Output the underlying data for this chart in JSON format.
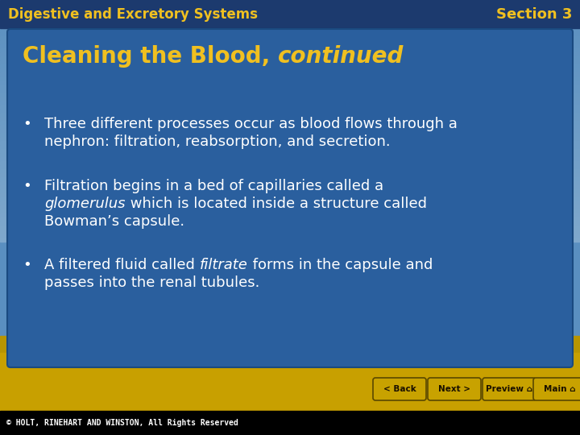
{
  "header_left": "Digestive and Excretory Systems",
  "header_right": "Section 3",
  "title_normal": "Cleaning the Blood, ",
  "title_italic": "continued",
  "bullet1_line1": "Three different processes occur as blood flows through a",
  "bullet1_line2": "nephron: filtration, reabsorption, and secretion.",
  "bullet2_line1_pre": "Filtration begins in a bed of capillaries called a",
  "bullet2_line2_italic": "glomerulus",
  "bullet2_line2_post": " which is located inside a structure called",
  "bullet2_line3": "Bowman’s capsule.",
  "bullet3_line1_pre": "A filtered fluid called ",
  "bullet3_line1_italic": "filtrate",
  "bullet3_line1_post": " forms in the capsule and",
  "bullet3_line2": "passes into the renal tubules.",
  "header_bg": "#1c3a6e",
  "sky_top": "#5a8fc0",
  "sky_bottom": "#7aaad0",
  "ground_color": "#c8a000",
  "panel_color": "#2a5f9e",
  "panel_edge": "#1a4a80",
  "title_color": "#f0c020",
  "header_color": "#f0c020",
  "bullet_color": "#ffffff",
  "footer_bg": "#000000",
  "footer_text": "© HOLT, RINEHART AND WINSTON, All Rights Reserved",
  "footer_color": "#ffffff",
  "bottom_bar": "#c8a000",
  "btn_bg": "#c8a000",
  "btn_edge": "#7a6000",
  "btn_labels": [
    "< Back",
    "Next >",
    "Preview",
    "Main"
  ]
}
